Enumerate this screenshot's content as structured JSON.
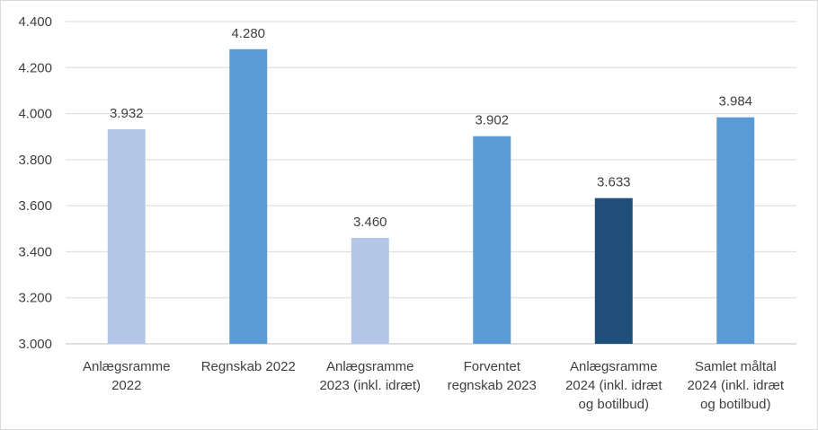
{
  "chart_data": {
    "type": "bar",
    "title": "",
    "xlabel": "",
    "ylabel": "",
    "ylim": [
      3000,
      4400
    ],
    "yticks": [
      3000,
      3200,
      3400,
      3600,
      3800,
      4000,
      4200,
      4400
    ],
    "ytick_labels": [
      "3.000",
      "3.200",
      "3.400",
      "3.600",
      "3.800",
      "4.000",
      "4.200",
      "4.400"
    ],
    "grid": true,
    "legend": "none",
    "categories": [
      [
        "Anlægsramme",
        "2022"
      ],
      [
        "Regnskab 2022"
      ],
      [
        "Anlægsramme",
        "2023 (inkl. idræt)"
      ],
      [
        "Forventet",
        "regnskab 2023"
      ],
      [
        "Anlægsramme",
        "2024 (inkl. idræt",
        "og botilbud)"
      ],
      [
        "Samlet måltal",
        "2024 (inkl. idræt",
        "og botilbud)"
      ]
    ],
    "values": [
      3932,
      4280,
      3460,
      3902,
      3633,
      3984
    ],
    "value_labels": [
      "3.932",
      "4.280",
      "3.460",
      "3.902",
      "3.633",
      "3.984"
    ],
    "bar_colors": [
      "#b4c7e7",
      "#5b9bd5",
      "#b4c7e7",
      "#5b9bd5",
      "#1f4e79",
      "#5b9bd5"
    ],
    "grid_color": "#d9d9d9",
    "axis_color": "#bfbfbf"
  }
}
